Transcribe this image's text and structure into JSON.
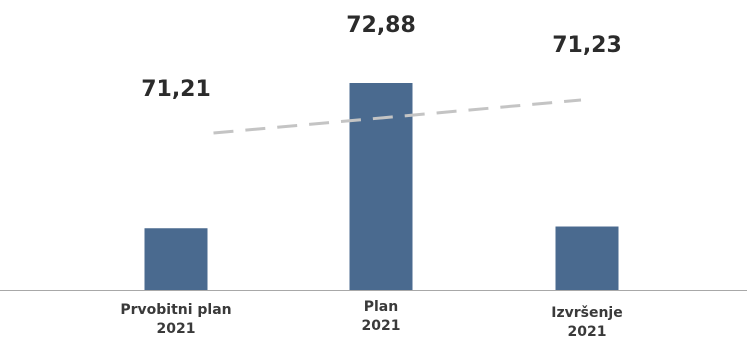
{
  "chart_data": {
    "type": "bar",
    "categories": [
      [
        "Prvobitni plan",
        "2021"
      ],
      [
        "Plan",
        "2021"
      ],
      [
        "Izvršenje",
        "2021"
      ]
    ],
    "values": [
      71.21,
      72.88,
      71.23
    ],
    "value_labels": [
      "71,21",
      "72,88",
      "71,23"
    ],
    "trendline": {
      "type": "linear",
      "style": "dashed"
    },
    "colors": {
      "bar": "#4a6a8f",
      "trendline": "#c4c4c4",
      "axis": "#a8a8a8"
    },
    "title": "",
    "xlabel": "",
    "ylabel": "",
    "grid": false,
    "legend": "none"
  }
}
